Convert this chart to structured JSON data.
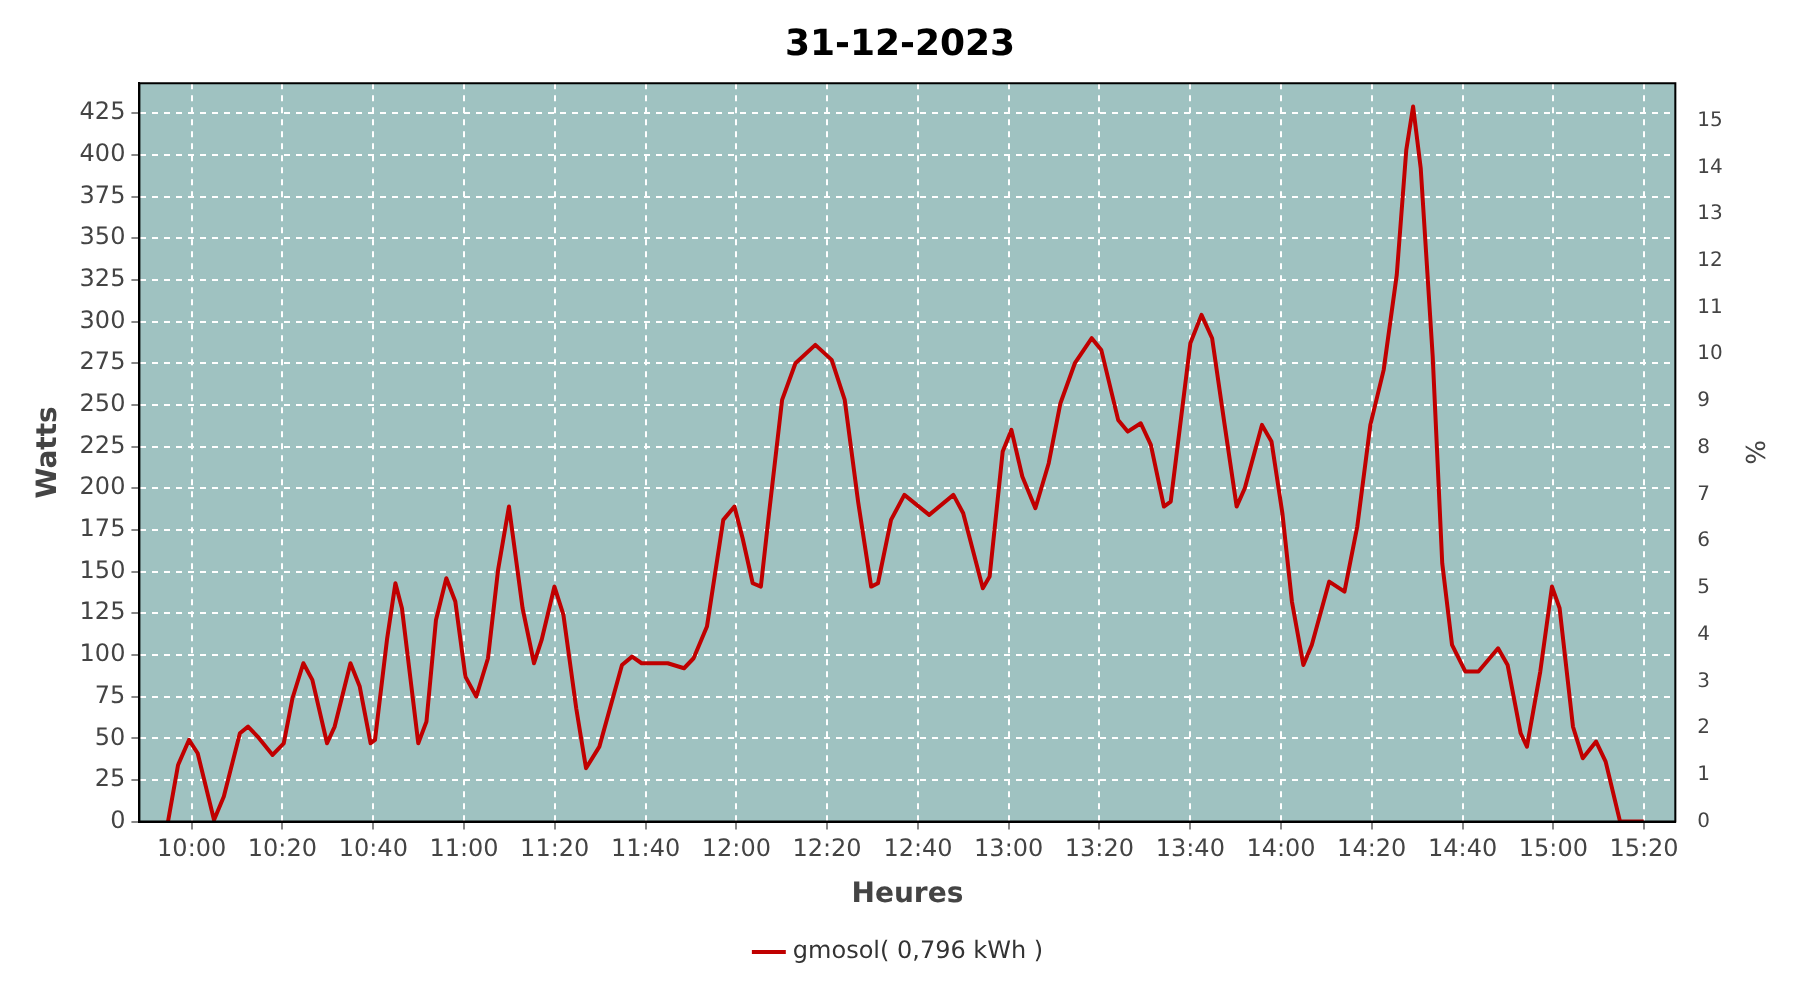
{
  "chart_data": {
    "type": "line",
    "title": "31-12-2023",
    "xlabel": "Heures",
    "ylabel": "Watts",
    "y2label": "%",
    "x": [
      9.913,
      9.95,
      9.99,
      10.022,
      10.082,
      10.118,
      10.177,
      10.207,
      10.242,
      10.297,
      10.338,
      10.37,
      10.41,
      10.443,
      10.497,
      10.525,
      10.583,
      10.617,
      10.657,
      10.673,
      10.717,
      10.748,
      10.772,
      10.832,
      10.862,
      10.897,
      10.935,
      10.968,
      11.005,
      11.045,
      11.088,
      11.125,
      11.165,
      11.215,
      11.257,
      11.285,
      11.332,
      11.365,
      11.412,
      11.448,
      11.497,
      11.58,
      11.617,
      11.652,
      11.748,
      11.808,
      11.843,
      11.892,
      11.952,
      11.993,
      12.023,
      12.06,
      12.09,
      12.12,
      12.168,
      12.217,
      12.29,
      12.35,
      12.398,
      12.447,
      12.495,
      12.52,
      12.568,
      12.617,
      12.708,
      12.797,
      12.833,
      12.905,
      12.93,
      12.978,
      13.01,
      13.05,
      13.098,
      13.147,
      13.19,
      13.243,
      13.305,
      13.34,
      13.402,
      13.437,
      13.485,
      13.522,
      13.57,
      13.595,
      13.667,
      13.708,
      13.747,
      13.793,
      13.837,
      13.867,
      13.93,
      13.965,
      14.005,
      14.04,
      14.082,
      14.113,
      14.177,
      14.233,
      14.28,
      14.328,
      14.377,
      14.425,
      14.46,
      14.485,
      14.513,
      14.557,
      14.592,
      14.628,
      14.677,
      14.725,
      14.797,
      14.832,
      14.88,
      14.903,
      14.952,
      14.995,
      15.023,
      15.072,
      15.108,
      15.157,
      15.192,
      15.245,
      15.332
    ],
    "series": [
      {
        "name": "gmosol( 0,796 kWh )",
        "color": "#c00000",
        "values": [
          0,
          34,
          49,
          41,
          1,
          15,
          53,
          57,
          51,
          40,
          47,
          74,
          95,
          85,
          47,
          57,
          95,
          81,
          47,
          49,
          109,
          143,
          128,
          47,
          60,
          121,
          146,
          132,
          87,
          75,
          98,
          151,
          189,
          128,
          95,
          109,
          141,
          124,
          68,
          32,
          45,
          94,
          99,
          95,
          95,
          92,
          98,
          117,
          181,
          189,
          170,
          143,
          141,
          185,
          253,
          275,
          286,
          277,
          253,
          192,
          141,
          143,
          181,
          196,
          184,
          196,
          185,
          140,
          147,
          222,
          235,
          207,
          188,
          215,
          251,
          275,
          290,
          283,
          241,
          234,
          239,
          226,
          189,
          192,
          287,
          304,
          290,
          238,
          189,
          200,
          238,
          228,
          185,
          132,
          94,
          106,
          144,
          138,
          177,
          238,
          271,
          328,
          403,
          429,
          392,
          279,
          155,
          106,
          90,
          90,
          104,
          94,
          53,
          45,
          90,
          141,
          128,
          57,
          38,
          48,
          36,
          0,
          0
        ]
      }
    ],
    "xlim": [
      9.808,
      15.448
    ],
    "xticks": [
      {
        "value": 10,
        "label": "10:00"
      },
      {
        "value": 10.333,
        "label": "10:20"
      },
      {
        "value": 10.667,
        "label": "10:40"
      },
      {
        "value": 11,
        "label": "11:00"
      },
      {
        "value": 11.333,
        "label": "11:20"
      },
      {
        "value": 11.667,
        "label": "11:40"
      },
      {
        "value": 12,
        "label": "12:00"
      },
      {
        "value": 12.333,
        "label": "12:20"
      },
      {
        "value": 12.667,
        "label": "12:40"
      },
      {
        "value": 13,
        "label": "13:00"
      },
      {
        "value": 13.333,
        "label": "13:20"
      },
      {
        "value": 13.667,
        "label": "13:40"
      },
      {
        "value": 14,
        "label": "14:00"
      },
      {
        "value": 14.333,
        "label": "14:20"
      },
      {
        "value": 14.667,
        "label": "14:40"
      },
      {
        "value": 15,
        "label": "15:00"
      },
      {
        "value": 15.333,
        "label": "15:20"
      }
    ],
    "ylim": [
      0,
      443
    ],
    "yticks": [
      0,
      25,
      50,
      75,
      100,
      125,
      150,
      175,
      200,
      225,
      250,
      275,
      300,
      325,
      350,
      375,
      400,
      425
    ],
    "y2lim": [
      0,
      15.8
    ],
    "y2ticks": [
      0,
      1,
      2,
      3,
      4,
      5,
      6,
      7,
      8,
      9,
      10,
      11,
      12,
      13,
      14,
      15
    ],
    "grid": true,
    "legend": "bottom",
    "marker": "none",
    "line_style": "solid"
  }
}
